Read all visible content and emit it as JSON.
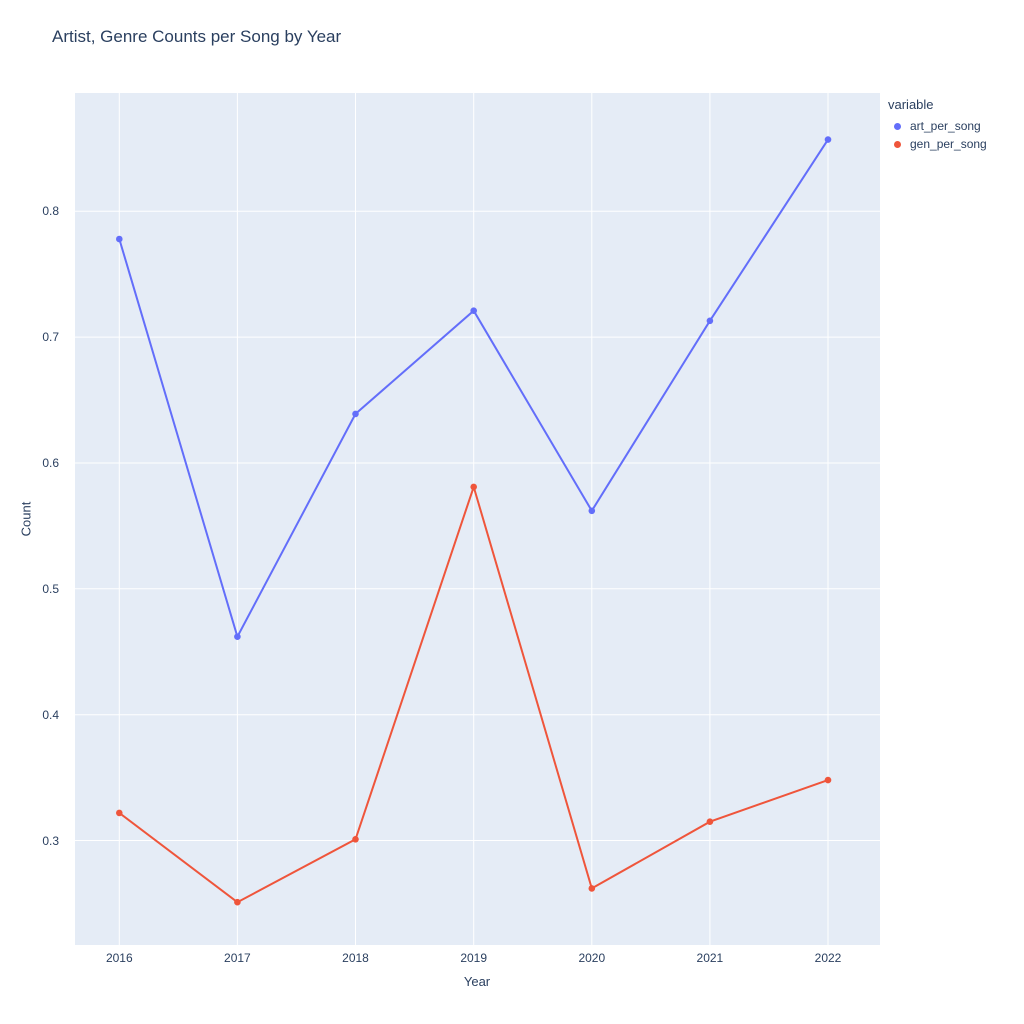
{
  "title": "Artist, Genre Counts per Song by Year",
  "legend": {
    "title": "variable",
    "items": [
      "art_per_song",
      "gen_per_song"
    ]
  },
  "chart_data": {
    "type": "line",
    "title": "Artist, Genre Counts per Song by Year",
    "xlabel": "Year",
    "ylabel": "Count",
    "x": [
      2016,
      2017,
      2018,
      2019,
      2020,
      2021,
      2022
    ],
    "x_tick_labels": [
      "2016",
      "2017",
      "2018",
      "2019",
      "2020",
      "2021",
      "2022"
    ],
    "y_ticks": [
      0.3,
      0.4,
      0.5,
      0.6,
      0.7,
      0.8
    ],
    "y_tick_labels": [
      "0.3",
      "0.4",
      "0.5",
      "0.6",
      "0.7",
      "0.8"
    ],
    "x_range": [
      2015.625,
      2022.44
    ],
    "y_range": [
      0.217,
      0.894
    ],
    "grid": true,
    "legend_position": "right",
    "legend_title": "variable",
    "mode": "lines+markers",
    "series": [
      {
        "name": "art_per_song",
        "color": "#636efa",
        "values": [
          0.778,
          0.462,
          0.639,
          0.721,
          0.562,
          0.713,
          0.857
        ]
      },
      {
        "name": "gen_per_song",
        "color": "#ef553b",
        "values": [
          0.322,
          0.251,
          0.301,
          0.581,
          0.262,
          0.315,
          0.348
        ]
      }
    ],
    "colors": {
      "plot_bg": "#e5ecf6",
      "paper_bg": "#ffffff",
      "gridline": "#ffffff",
      "font": "#2a3f5f"
    }
  }
}
